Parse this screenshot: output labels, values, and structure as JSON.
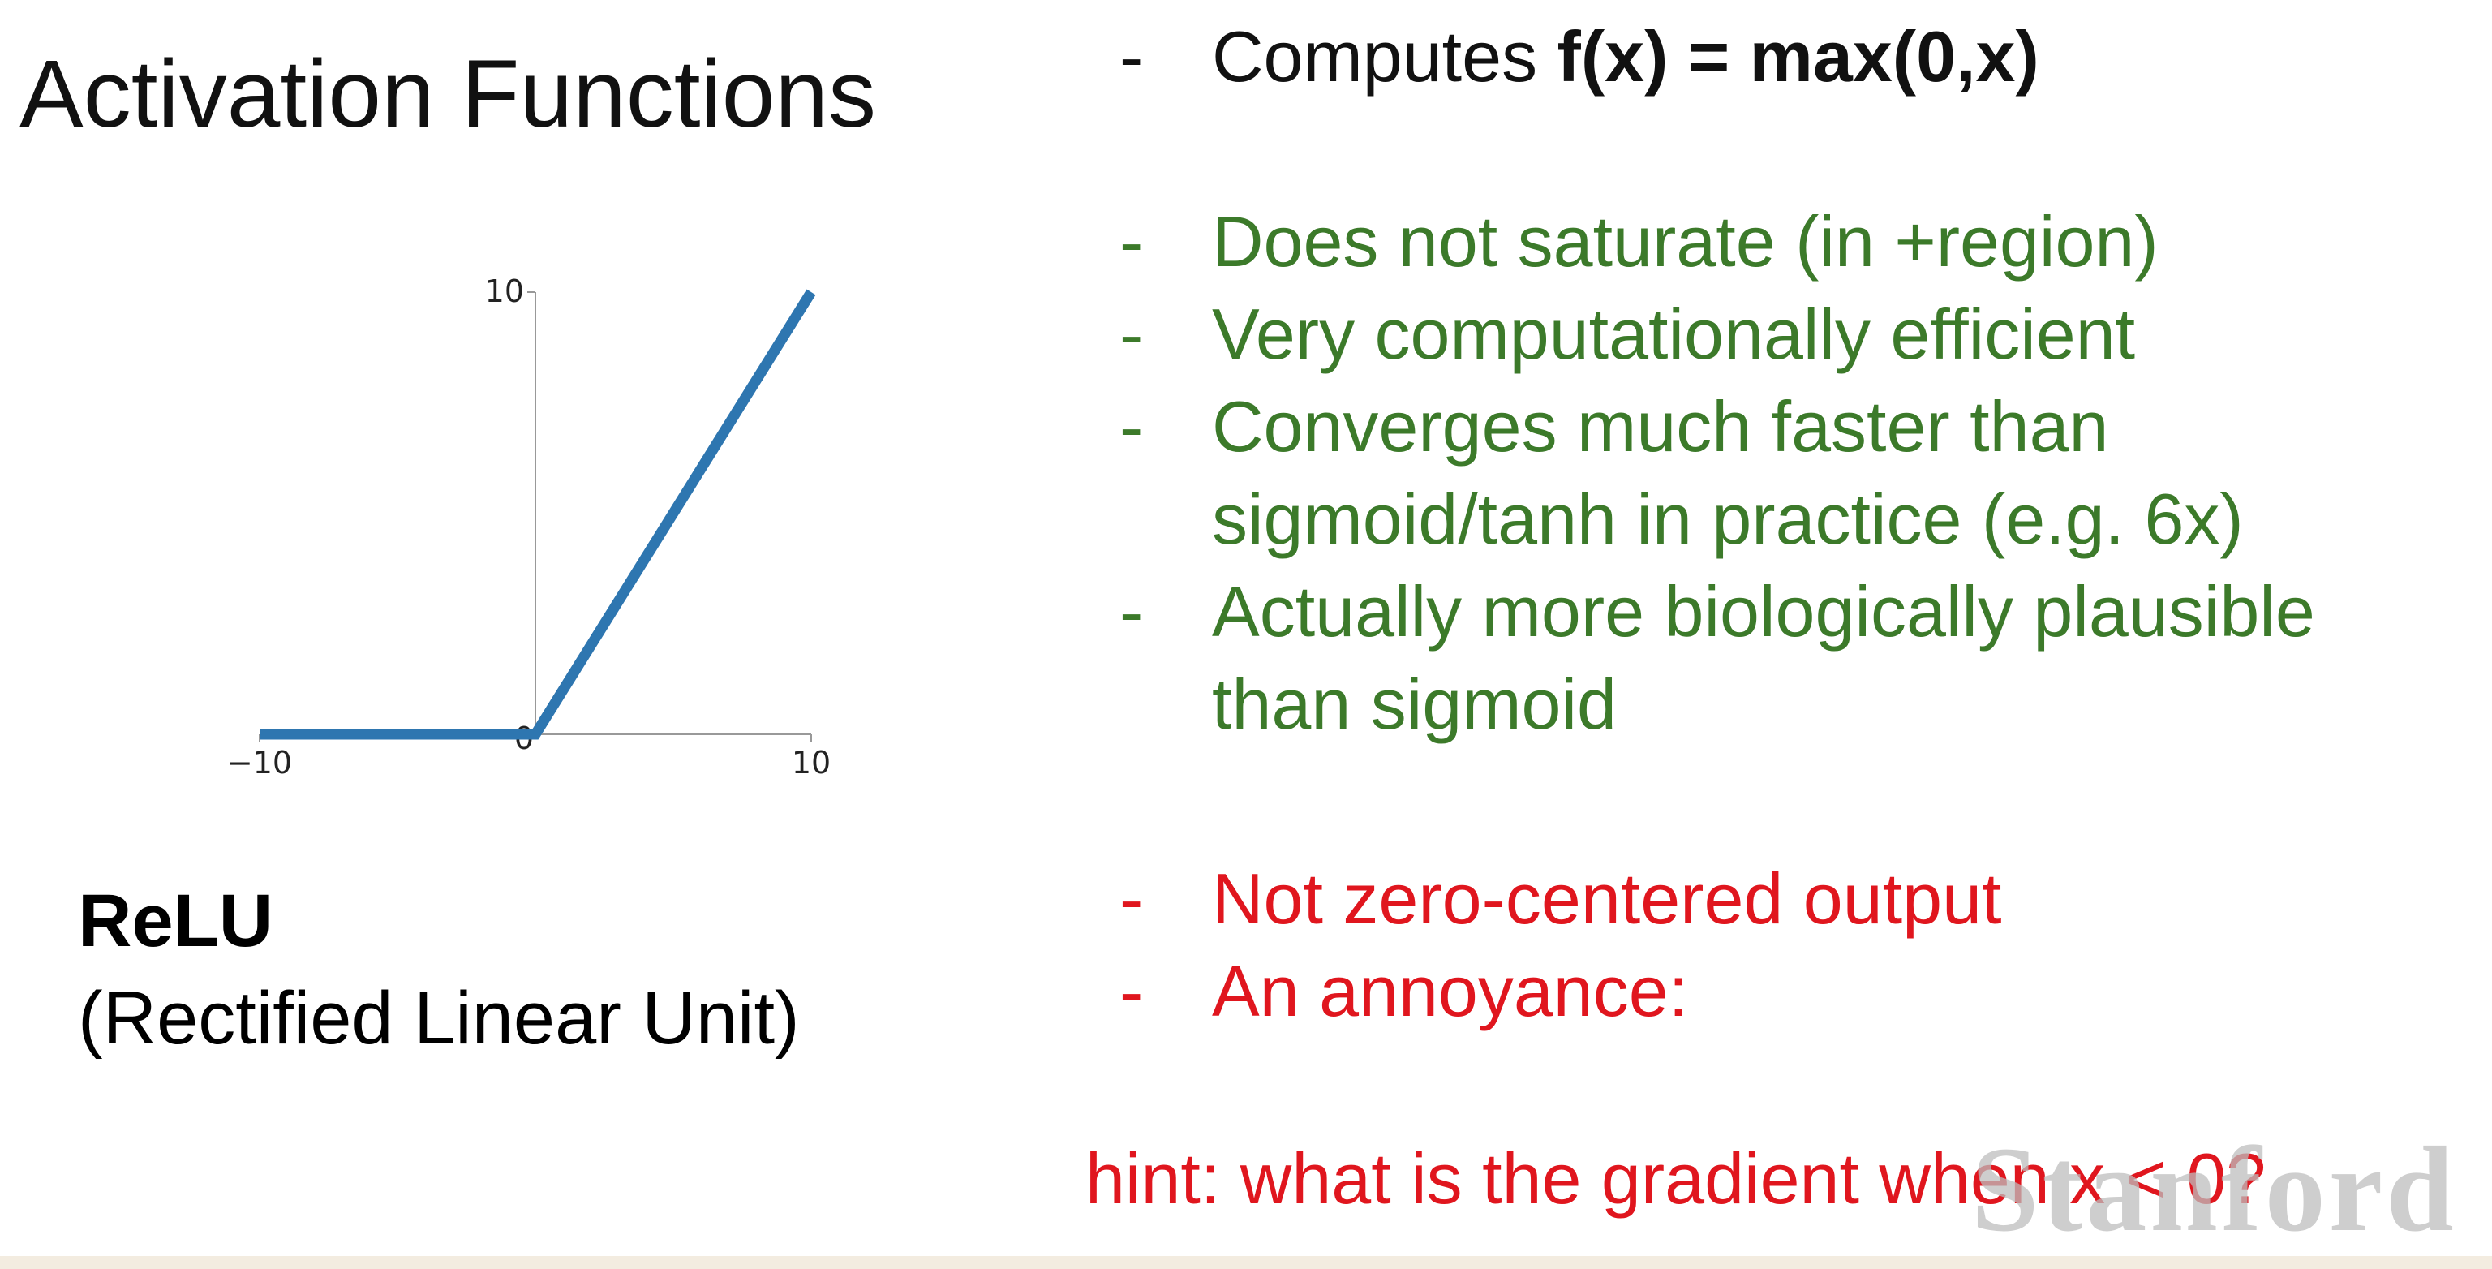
{
  "slide": {
    "title": "Activation Functions",
    "relu_name": "ReLU",
    "relu_full_name": "(Rectified Linear Unit)",
    "formula_prefix": "Computes ",
    "formula": "f(x) = max(0,x)",
    "pros": [
      "Does not saturate (in +region)",
      "Very computationally efficient",
      "Converges much faster than",
      "sigmoid/tanh in practice (e.g. 6x)",
      "Actually more biologically plausible",
      "than sigmoid"
    ],
    "cons": [
      "Not zero-centered output",
      "An annoyance:"
    ],
    "hint": "hint: what is the gradient when x < 0?",
    "watermark": "Stanford",
    "bullet_dash": "-"
  },
  "colors": {
    "text": "#111111",
    "pros": "#3c7a2a",
    "cons": "#e0161e",
    "line": "#2e76b0",
    "axis": "#999999"
  },
  "chart_data": {
    "type": "line",
    "title": "",
    "xlabel": "",
    "ylabel": "",
    "xlim": [
      -10,
      10
    ],
    "ylim": [
      0,
      10
    ],
    "x_ticks": [
      "−10",
      "10"
    ],
    "y_ticks": [
      "10"
    ],
    "origin_label": "0",
    "series": [
      {
        "x": [
          -10,
          0,
          10
        ],
        "y": [
          0,
          0,
          10
        ]
      }
    ]
  }
}
